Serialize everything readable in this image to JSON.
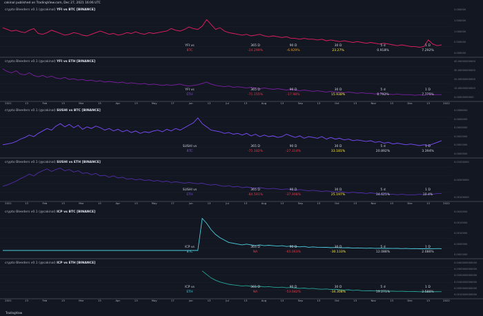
{
  "header": {
    "text": "cakinal published on TradingView.com, Dec 27, 2021 16:06 UTC"
  },
  "footer": {
    "logo_text": "TradingView"
  },
  "stat_headers": [
    "365 D",
    "90 D",
    "30 D",
    "5 d",
    "1 D"
  ],
  "x_axis": [
    "2021",
    "13",
    "Feb",
    "13",
    "Mar",
    "13",
    "Apr",
    "13",
    "May",
    "17",
    "Jun",
    "13",
    "Jul",
    "13",
    "Aug",
    "13",
    "Sep",
    "13",
    "Oct",
    "13",
    "Nov",
    "13",
    "Dec",
    "13",
    "2022"
  ],
  "panes": [
    {
      "title_prefix": "crypto Bleeders v0.1 (@cakinal)",
      "title_pair": "YFI vs BTC [BINANCE]",
      "color": "#e91e63",
      "pair_label": "YFI vs",
      "quote": "BTC",
      "quote_class": "red",
      "values": [
        {
          "v": "-24.299%",
          "cls": "red"
        },
        {
          "v": "-6.929%",
          "cls": "orange"
        },
        {
          "v": "23.27%",
          "cls": "yellow"
        },
        {
          "v": "0.918%",
          "cls": "white"
        },
        {
          "v": "7.292%",
          "cls": "white"
        }
      ],
      "yticks": [
        "2.000000",
        "1.500000",
        "1.000000",
        "0.500000",
        "0.000000"
      ],
      "series": [
        3.2,
        3.0,
        2.8,
        2.9,
        2.7,
        2.6,
        2.9,
        3.1,
        2.5,
        2.4,
        2.6,
        2.9,
        2.7,
        2.5,
        2.3,
        2.4,
        2.6,
        2.5,
        2.3,
        2.2,
        2.4,
        2.6,
        2.8,
        2.6,
        2.4,
        2.5,
        2.3,
        2.4,
        2.6,
        2.5,
        2.7,
        2.5,
        2.4,
        2.6,
        2.5,
        2.6,
        2.7,
        2.8,
        3.1,
        2.9,
        2.8,
        3.0,
        3.3,
        3.1,
        3.0,
        3.4,
        4.2,
        3.6,
        3.0,
        3.2,
        2.8,
        2.6,
        2.5,
        2.4,
        2.3,
        2.4,
        2.2,
        2.3,
        2.4,
        2.2,
        2.1,
        2.2,
        2.1,
        2.0,
        2.1,
        1.9,
        1.9,
        1.8,
        1.9,
        1.8,
        1.8,
        1.7,
        1.8,
        1.6,
        1.7,
        1.6,
        1.5,
        1.6,
        1.5,
        1.4,
        1.5,
        1.4,
        1.3,
        1.4,
        1.3,
        1.2,
        1.3,
        1.2,
        1.1,
        1.0,
        1.1,
        1.0,
        0.9,
        0.9,
        0.8,
        0.9,
        1.7,
        1.2,
        1.0,
        1.1
      ],
      "ymin": 0,
      "ymax": 5
    },
    {
      "title_prefix": "crypto Bleeders v0.1 (@cakinal)",
      "title_pair": "YFI vs ETH [BINANCE]",
      "color": "#7b1fa2",
      "pair_label": "YFI vs",
      "quote": "ETH",
      "quote_class": "purple",
      "values": [
        {
          "v": "-71.155%",
          "cls": "red"
        },
        {
          "v": "-17.98%",
          "cls": "red"
        },
        {
          "v": "15.938%",
          "cls": "yellow"
        },
        {
          "v": "8.792%",
          "cls": "white"
        },
        {
          "v": "7.775%",
          "cls": "white"
        }
      ],
      "yticks": [
        "40.00000000000",
        "30.00000000000",
        "20.00000000000",
        "10.00000000000",
        "0.00000000000"
      ],
      "series": [
        4.4,
        4.0,
        3.8,
        4.1,
        3.6,
        3.5,
        3.8,
        3.4,
        3.2,
        3.4,
        3.1,
        3.3,
        3.0,
        2.9,
        3.1,
        2.8,
        2.9,
        2.7,
        2.8,
        2.6,
        2.7,
        2.5,
        2.6,
        2.4,
        2.5,
        2.4,
        2.3,
        2.4,
        2.2,
        2.3,
        2.2,
        2.1,
        2.2,
        2.0,
        2.1,
        2.0,
        1.9,
        2.0,
        1.9,
        2.0,
        2.1,
        1.9,
        1.8,
        1.9,
        2.0,
        2.2,
        2.4,
        2.1,
        1.9,
        1.8,
        1.7,
        1.8,
        1.6,
        1.7,
        1.6,
        1.5,
        1.6,
        1.5,
        1.4,
        1.5,
        1.4,
        1.3,
        1.4,
        1.3,
        1.2,
        1.3,
        1.2,
        1.1,
        1.2,
        1.1,
        1.0,
        1.1,
        1.0,
        0.9,
        1.0,
        0.9,
        0.9,
        0.8,
        0.9,
        0.8,
        0.7,
        0.8,
        0.7,
        0.7,
        0.6,
        0.7,
        0.6,
        0.6,
        0.5,
        0.6,
        0.5,
        0.5,
        0.5,
        0.4,
        0.5,
        0.4,
        0.6,
        0.5,
        0.5,
        0.5
      ],
      "ymin": 0,
      "ymax": 5
    },
    {
      "title_prefix": "crypto Bleeders v0.1 (@cakinal)",
      "title_pair": "SUSHI vs BTC [BINANCE]",
      "color": "#7c4dff",
      "pair_label": "SUSHI vs",
      "quote": "BTC",
      "quote_class": "purple",
      "values": [
        {
          "v": "-71.182%",
          "cls": "red"
        },
        {
          "v": "-27.314%",
          "cls": "red"
        },
        {
          "v": "33.181%",
          "cls": "yellow"
        },
        {
          "v": "20.892%",
          "cls": "white"
        },
        {
          "v": "3.394%",
          "cls": "white"
        }
      ],
      "yticks": [
        "0.0006000",
        "0.0004000",
        "0.0003000",
        "0.0002000",
        "0.0001000",
        "0.0000500"
      ],
      "series": [
        1.2,
        1.3,
        1.4,
        1.6,
        1.9,
        2.1,
        2.4,
        2.2,
        2.6,
        2.9,
        3.2,
        3.0,
        3.5,
        3.8,
        3.4,
        3.7,
        3.3,
        3.6,
        3.1,
        3.4,
        3.2,
        3.5,
        3.3,
        3.0,
        3.2,
        2.9,
        3.1,
        2.8,
        3.0,
        2.7,
        2.9,
        2.6,
        2.8,
        2.7,
        2.9,
        3.0,
        2.8,
        3.1,
        2.9,
        3.2,
        3.0,
        3.3,
        3.6,
        3.9,
        4.5,
        3.8,
        3.4,
        3.0,
        2.9,
        2.8,
        2.6,
        2.7,
        2.5,
        2.6,
        2.4,
        2.6,
        2.3,
        2.5,
        2.2,
        2.4,
        2.2,
        2.3,
        2.1,
        2.2,
        2.5,
        2.3,
        2.1,
        2.3,
        2.0,
        2.2,
        2.1,
        2.0,
        2.2,
        1.9,
        2.1,
        1.9,
        2.0,
        1.8,
        1.9,
        1.7,
        1.8,
        1.7,
        1.6,
        1.7,
        1.5,
        1.6,
        1.4,
        1.5,
        1.3,
        1.4,
        1.3,
        1.2,
        1.3,
        1.2,
        1.1,
        1.2,
        1.1,
        1.3,
        1.5,
        1.7
      ],
      "ymin": 0,
      "ymax": 5
    },
    {
      "title_prefix": "crypto Bleeders v0.1 (@cakinal)",
      "title_pair": "SUSHI vs ETH [BINANCE]",
      "color": "#512da8",
      "pair_label": "SUSHI vs",
      "quote": "ETH",
      "quote_class": "purple",
      "values": [
        {
          "v": "-84.591%",
          "cls": "red"
        },
        {
          "v": "-37.908%",
          "cls": "red"
        },
        {
          "v": "25.197%",
          "cls": "yellow"
        },
        {
          "v": "34.621%",
          "cls": "white"
        },
        {
          "v": "10.4%",
          "cls": "white"
        }
      ],
      "yticks": [
        "0.01000000",
        "0.00500000",
        "0.00100000"
      ],
      "series": [
        1.8,
        2.0,
        2.3,
        2.6,
        3.0,
        3.3,
        3.7,
        3.4,
        3.9,
        4.2,
        4.5,
        4.1,
        4.4,
        4.6,
        4.2,
        4.4,
        4.0,
        4.2,
        3.8,
        3.9,
        3.6,
        3.8,
        3.4,
        3.5,
        3.2,
        3.4,
        3.1,
        3.2,
        2.9,
        3.0,
        2.8,
        2.9,
        2.7,
        2.8,
        2.6,
        2.7,
        2.5,
        2.6,
        2.4,
        2.5,
        2.4,
        2.3,
        2.4,
        2.3,
        2.2,
        2.3,
        2.1,
        2.0,
        2.1,
        1.9,
        1.8,
        1.9,
        1.7,
        1.8,
        1.6,
        1.7,
        1.6,
        1.5,
        1.6,
        1.5,
        1.4,
        1.5,
        1.4,
        1.3,
        1.4,
        1.3,
        1.2,
        1.3,
        1.2,
        1.1,
        1.2,
        1.1,
        1.0,
        1.1,
        1.0,
        0.9,
        1.0,
        0.9,
        0.8,
        0.9,
        0.8,
        0.8,
        0.7,
        0.8,
        0.7,
        0.6,
        0.7,
        0.6,
        0.6,
        0.5,
        0.6,
        0.5,
        0.5,
        0.5,
        0.6,
        0.5,
        0.6,
        0.6,
        0.7,
        0.7
      ],
      "ymin": 0,
      "ymax": 5
    },
    {
      "title_prefix": "crypto Bleeders v0.1 (@cakinal)",
      "title_pair": "ICP vs BTC [BINANCE]",
      "color": "#4dd0e1",
      "pair_label": "ICP vs",
      "quote": "BTC",
      "quote_class": "cyan",
      "values": [
        {
          "v": "NA",
          "cls": "red"
        },
        {
          "v": "-65.063%",
          "cls": "red"
        },
        {
          "v": "-30.133%",
          "cls": "yellow"
        },
        {
          "v": "12.088%",
          "cls": "white"
        },
        {
          "v": "2.086%",
          "cls": "white"
        }
      ],
      "yticks": [
        "0.0020000",
        "0.0015000",
        "0.0010000",
        "0.0005000",
        "0.0001000"
      ],
      "series": [
        0.6,
        0.6,
        0.6,
        0.6,
        0.6,
        0.6,
        0.6,
        0.6,
        0.6,
        0.6,
        0.6,
        0.6,
        0.6,
        0.6,
        0.6,
        0.6,
        0.6,
        0.6,
        0.6,
        0.6,
        0.6,
        0.6,
        0.6,
        0.6,
        0.6,
        0.6,
        0.6,
        0.6,
        0.6,
        0.6,
        0.6,
        0.6,
        0.6,
        0.6,
        0.6,
        0.6,
        0.6,
        0.6,
        0.6,
        0.6,
        0.6,
        0.6,
        0.6,
        0.6,
        0.6,
        4.6,
        4.0,
        3.2,
        2.6,
        2.2,
        1.9,
        1.6,
        1.5,
        1.4,
        1.3,
        1.4,
        1.3,
        1.2,
        1.3,
        1.2,
        1.25,
        1.2,
        1.15,
        1.2,
        1.1,
        1.15,
        1.1,
        1.05,
        1.1,
        1.0,
        1.05,
        1.0,
        0.98,
        1.0,
        0.95,
        0.97,
        0.95,
        0.93,
        0.95,
        0.9,
        0.92,
        0.9,
        0.88,
        0.9,
        0.87,
        0.88,
        0.86,
        0.87,
        0.85,
        0.86,
        0.84,
        0.85,
        0.83,
        0.84,
        0.82,
        0.83,
        0.82,
        0.83,
        0.84,
        0.83
      ],
      "ymin": 0,
      "ymax": 5
    },
    {
      "title_prefix": "crypto Bleeders v0.1 (@cakinal)",
      "title_pair": "ICP vs ETH [BINANCE]",
      "color": "#26a69a",
      "pair_label": "ICP vs",
      "quote": "ETH",
      "quote_class": "cyan",
      "values": [
        {
          "v": "NA",
          "cls": "red"
        },
        {
          "v": "-53.682%",
          "cls": "red"
        },
        {
          "v": "-34.308%",
          "cls": "yellow"
        },
        {
          "v": "19.271%",
          "cls": "white"
        },
        {
          "v": "2.586%",
          "cls": "white"
        }
      ],
      "yticks": [
        "0.0400000000000",
        "0.0300000000000",
        "0.0200000000000",
        "0.0100000000000",
        "0.0050000000000",
        "0.0010000000000"
      ],
      "series": [
        null,
        null,
        null,
        null,
        null,
        null,
        null,
        null,
        null,
        null,
        null,
        null,
        null,
        null,
        null,
        null,
        null,
        null,
        null,
        null,
        null,
        null,
        null,
        null,
        null,
        null,
        null,
        null,
        null,
        null,
        null,
        null,
        null,
        null,
        null,
        null,
        null,
        null,
        null,
        null,
        null,
        null,
        null,
        null,
        null,
        4.2,
        3.6,
        3.0,
        2.6,
        2.3,
        2.1,
        1.9,
        1.8,
        1.7,
        1.6,
        1.65,
        1.55,
        1.5,
        1.55,
        1.45,
        1.5,
        1.4,
        1.35,
        1.4,
        1.3,
        1.35,
        1.25,
        1.2,
        1.25,
        1.15,
        1.2,
        1.1,
        1.05,
        1.1,
        1.0,
        1.05,
        0.95,
        0.9,
        0.95,
        0.85,
        0.9,
        0.8,
        0.78,
        0.8,
        0.75,
        0.78,
        0.72,
        0.7,
        0.72,
        0.68,
        0.7,
        0.66,
        0.64,
        0.65,
        0.62,
        0.63,
        0.6,
        0.62,
        0.63,
        0.62
      ],
      "ymin": 0,
      "ymax": 5
    }
  ]
}
